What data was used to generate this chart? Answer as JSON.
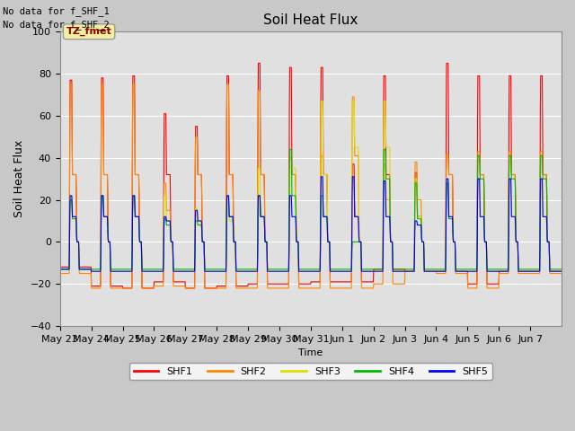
{
  "title": "Soil Heat Flux",
  "ylabel": "Soil Heat Flux",
  "xlabel": "Time",
  "ylim": [
    -40,
    100
  ],
  "figure_facecolor": "#c8c8c8",
  "plot_bg_color": "#e0e0e0",
  "annotation_text1": "No data for f_SHF_1",
  "annotation_text2": "No data for f_SHF_2",
  "tz_label": "TZ_fmet",
  "legend_entries": [
    "SHF1",
    "SHF2",
    "SHF3",
    "SHF4",
    "SHF5"
  ],
  "legend_colors": [
    "#ff0000",
    "#ff8800",
    "#dddd00",
    "#00bb00",
    "#0000ff"
  ],
  "num_days": 16,
  "x_tick_labels": [
    "May 23",
    "May 24",
    "May 25",
    "May 26",
    "May 27",
    "May 28",
    "May 29",
    "May 30",
    "May 31",
    "Jun 1",
    "Jun 2",
    "Jun 3",
    "Jun 4",
    "Jun 5",
    "Jun 6",
    "Jun 7"
  ],
  "yticks": [
    -40,
    -20,
    0,
    20,
    40,
    60,
    80,
    100
  ],
  "shf1_peaks": [
    77,
    78,
    79,
    61,
    55,
    79,
    85,
    83,
    83,
    37,
    79,
    33,
    85,
    79,
    79,
    79
  ],
  "shf2_peaks": [
    75,
    75,
    75,
    28,
    50,
    75,
    72,
    40,
    41,
    69,
    37,
    38,
    42,
    43,
    43,
    43
  ],
  "shf3_peaks": [
    22,
    22,
    22,
    22,
    16,
    22,
    35,
    35,
    67,
    67,
    67,
    30,
    30,
    30,
    30,
    30
  ],
  "shf4_peaks": [
    20,
    22,
    22,
    11,
    10,
    22,
    22,
    44,
    22,
    0,
    44,
    28,
    28,
    41,
    41,
    41
  ],
  "shf5_peaks": [
    22,
    22,
    22,
    12,
    15,
    22,
    22,
    22,
    31,
    31,
    29,
    10,
    30,
    30,
    30,
    30
  ],
  "shf1_mid": [
    32,
    32,
    32,
    32,
    32,
    32,
    32,
    32,
    32,
    12,
    32,
    12,
    32,
    32,
    32,
    32
  ],
  "shf2_mid": [
    32,
    32,
    32,
    15,
    32,
    32,
    32,
    32,
    32,
    41,
    20,
    20,
    32,
    32,
    32,
    32
  ],
  "shf3_mid": [
    12,
    12,
    12,
    10,
    10,
    10,
    12,
    35,
    32,
    45,
    45,
    12,
    12,
    12,
    12,
    12
  ],
  "shf4_mid": [
    11,
    12,
    12,
    8,
    8,
    12,
    12,
    22,
    12,
    0,
    30,
    11,
    11,
    30,
    30,
    30
  ],
  "shf5_mid": [
    12,
    12,
    12,
    10,
    10,
    12,
    12,
    12,
    12,
    12,
    12,
    8,
    12,
    12,
    12,
    12
  ],
  "shf1_troughs": [
    -12,
    -21,
    -22,
    -19,
    -22,
    -21,
    -20,
    -20,
    -19,
    -19,
    -13,
    -14,
    -14,
    -20,
    -14,
    -14
  ],
  "shf2_troughs": [
    -15,
    -22,
    -22,
    -21,
    -22,
    -22,
    -22,
    -22,
    -22,
    -22,
    -20,
    -14,
    -15,
    -22,
    -15,
    -15
  ],
  "shf3_troughs": [
    -13,
    -14,
    -14,
    -14,
    -14,
    -14,
    -14,
    -14,
    -14,
    -14,
    -14,
    -14,
    -14,
    -14,
    -14,
    -14
  ],
  "shf4_troughs": [
    -13,
    -13,
    -13,
    -13,
    -13,
    -13,
    -13,
    -13,
    -13,
    -13,
    -13,
    -13,
    -13,
    -13,
    -13,
    -13
  ],
  "shf5_troughs": [
    -13,
    -14,
    -14,
    -14,
    -14,
    -14,
    -14,
    -14,
    -14,
    -14,
    -14,
    -14,
    -14,
    -14,
    -14,
    -14
  ]
}
